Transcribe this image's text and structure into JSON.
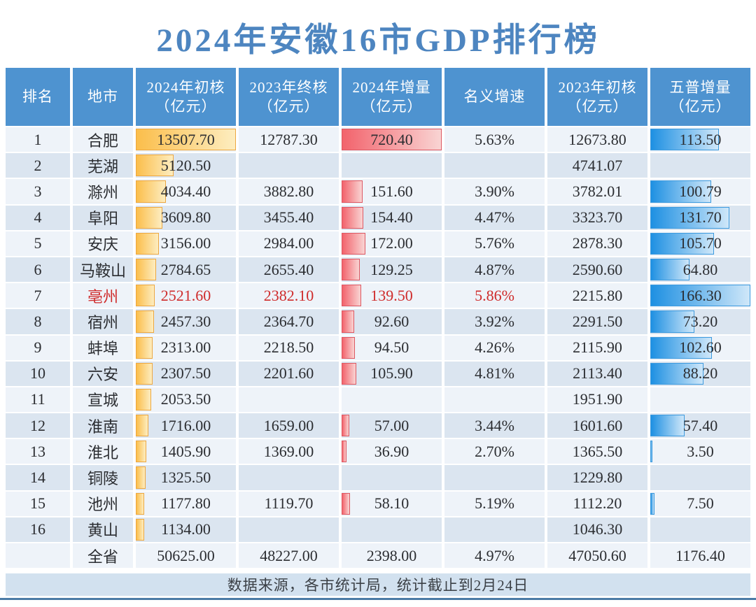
{
  "chart_data": {
    "type": "table",
    "title": "2024年安徽16市GDP排行榜",
    "columns": [
      "排名",
      "地市",
      "2024年初核\n（亿元）",
      "2023年终核\n（亿元）",
      "2024年增量\n（亿元）",
      "名义增速",
      "2023年初核\n（亿元）",
      "五普增量\n（亿元）"
    ],
    "rows": [
      [
        "1",
        "合肥",
        "13507.70",
        "12787.30",
        "720.40",
        "5.63%",
        "12673.80",
        "113.50"
      ],
      [
        "2",
        "芜湖",
        "5120.50",
        "",
        "",
        "",
        "4741.07",
        ""
      ],
      [
        "3",
        "滁州",
        "4034.40",
        "3882.80",
        "151.60",
        "3.90%",
        "3782.01",
        "100.79"
      ],
      [
        "4",
        "阜阳",
        "3609.80",
        "3455.40",
        "154.40",
        "4.47%",
        "3323.70",
        "131.70"
      ],
      [
        "5",
        "安庆",
        "3156.00",
        "2984.00",
        "172.00",
        "5.76%",
        "2878.30",
        "105.70"
      ],
      [
        "6",
        "马鞍山",
        "2784.65",
        "2655.40",
        "129.25",
        "4.87%",
        "2590.60",
        "64.80"
      ],
      [
        "7",
        "亳州",
        "2521.60",
        "2382.10",
        "139.50",
        "5.86%",
        "2215.80",
        "166.30"
      ],
      [
        "8",
        "宿州",
        "2457.30",
        "2364.70",
        "92.60",
        "3.92%",
        "2291.50",
        "73.20"
      ],
      [
        "9",
        "蚌埠",
        "2313.00",
        "2218.50",
        "94.50",
        "4.26%",
        "2115.90",
        "102.60"
      ],
      [
        "10",
        "六安",
        "2307.50",
        "2201.60",
        "105.90",
        "4.81%",
        "2113.40",
        "88.20"
      ],
      [
        "11",
        "宣城",
        "2053.50",
        "",
        "",
        "",
        "1951.90",
        ""
      ],
      [
        "12",
        "淮南",
        "1716.00",
        "1659.00",
        "57.00",
        "3.44%",
        "1601.60",
        "57.40"
      ],
      [
        "13",
        "淮北",
        "1405.90",
        "1369.00",
        "36.90",
        "2.70%",
        "1365.50",
        "3.50"
      ],
      [
        "14",
        "铜陵",
        "1325.50",
        "",
        "",
        "",
        "1229.80",
        ""
      ],
      [
        "15",
        "池州",
        "1177.80",
        "1119.70",
        "58.10",
        "5.19%",
        "1112.20",
        "7.50"
      ],
      [
        "16",
        "黄山",
        "1134.00",
        "",
        "",
        "",
        "1046.30",
        ""
      ]
    ],
    "total_row": [
      "",
      "全省",
      "50625.00",
      "48227.00",
      "2398.00",
      "4.97%",
      "47050.60",
      "1176.40"
    ],
    "footer": "数据来源，各市统计局，统计截止到2月24日",
    "highlight_row_rank": "7",
    "bar_columns": {
      "2": {
        "name": "gdp-2024-bar",
        "style": "orange",
        "max": 13507.7
      },
      "4": {
        "name": "increment-2024-bar",
        "style": "red",
        "max": 720.4
      },
      "7": {
        "name": "wupu-increment-bar",
        "style": "blue",
        "max": 166.3
      }
    }
  },
  "colors": {
    "title_text": "#4d85c0",
    "header_bg": "#4e93d0",
    "header_text": "#ffffff",
    "row_odd_bg": "#eef3f9",
    "row_even_bg": "#dbe5f0",
    "text_normal": "#2b2d31",
    "text_highlight": "#cf2b2b",
    "footer_bg": "#d2e1ef",
    "bottom_line": "#4b7ba6",
    "bar_orange_from": "#fbbe4b",
    "bar_orange_to": "#fdedc0",
    "bar_orange_border": "#eda73f",
    "bar_red_from": "#f2636c",
    "bar_red_to": "#f9d4d3",
    "bar_red_border": "#dd5761",
    "bar_blue_from": "#1e90e2",
    "bar_blue_to": "#cfe7f9",
    "bar_blue_border": "#3c9ade"
  }
}
